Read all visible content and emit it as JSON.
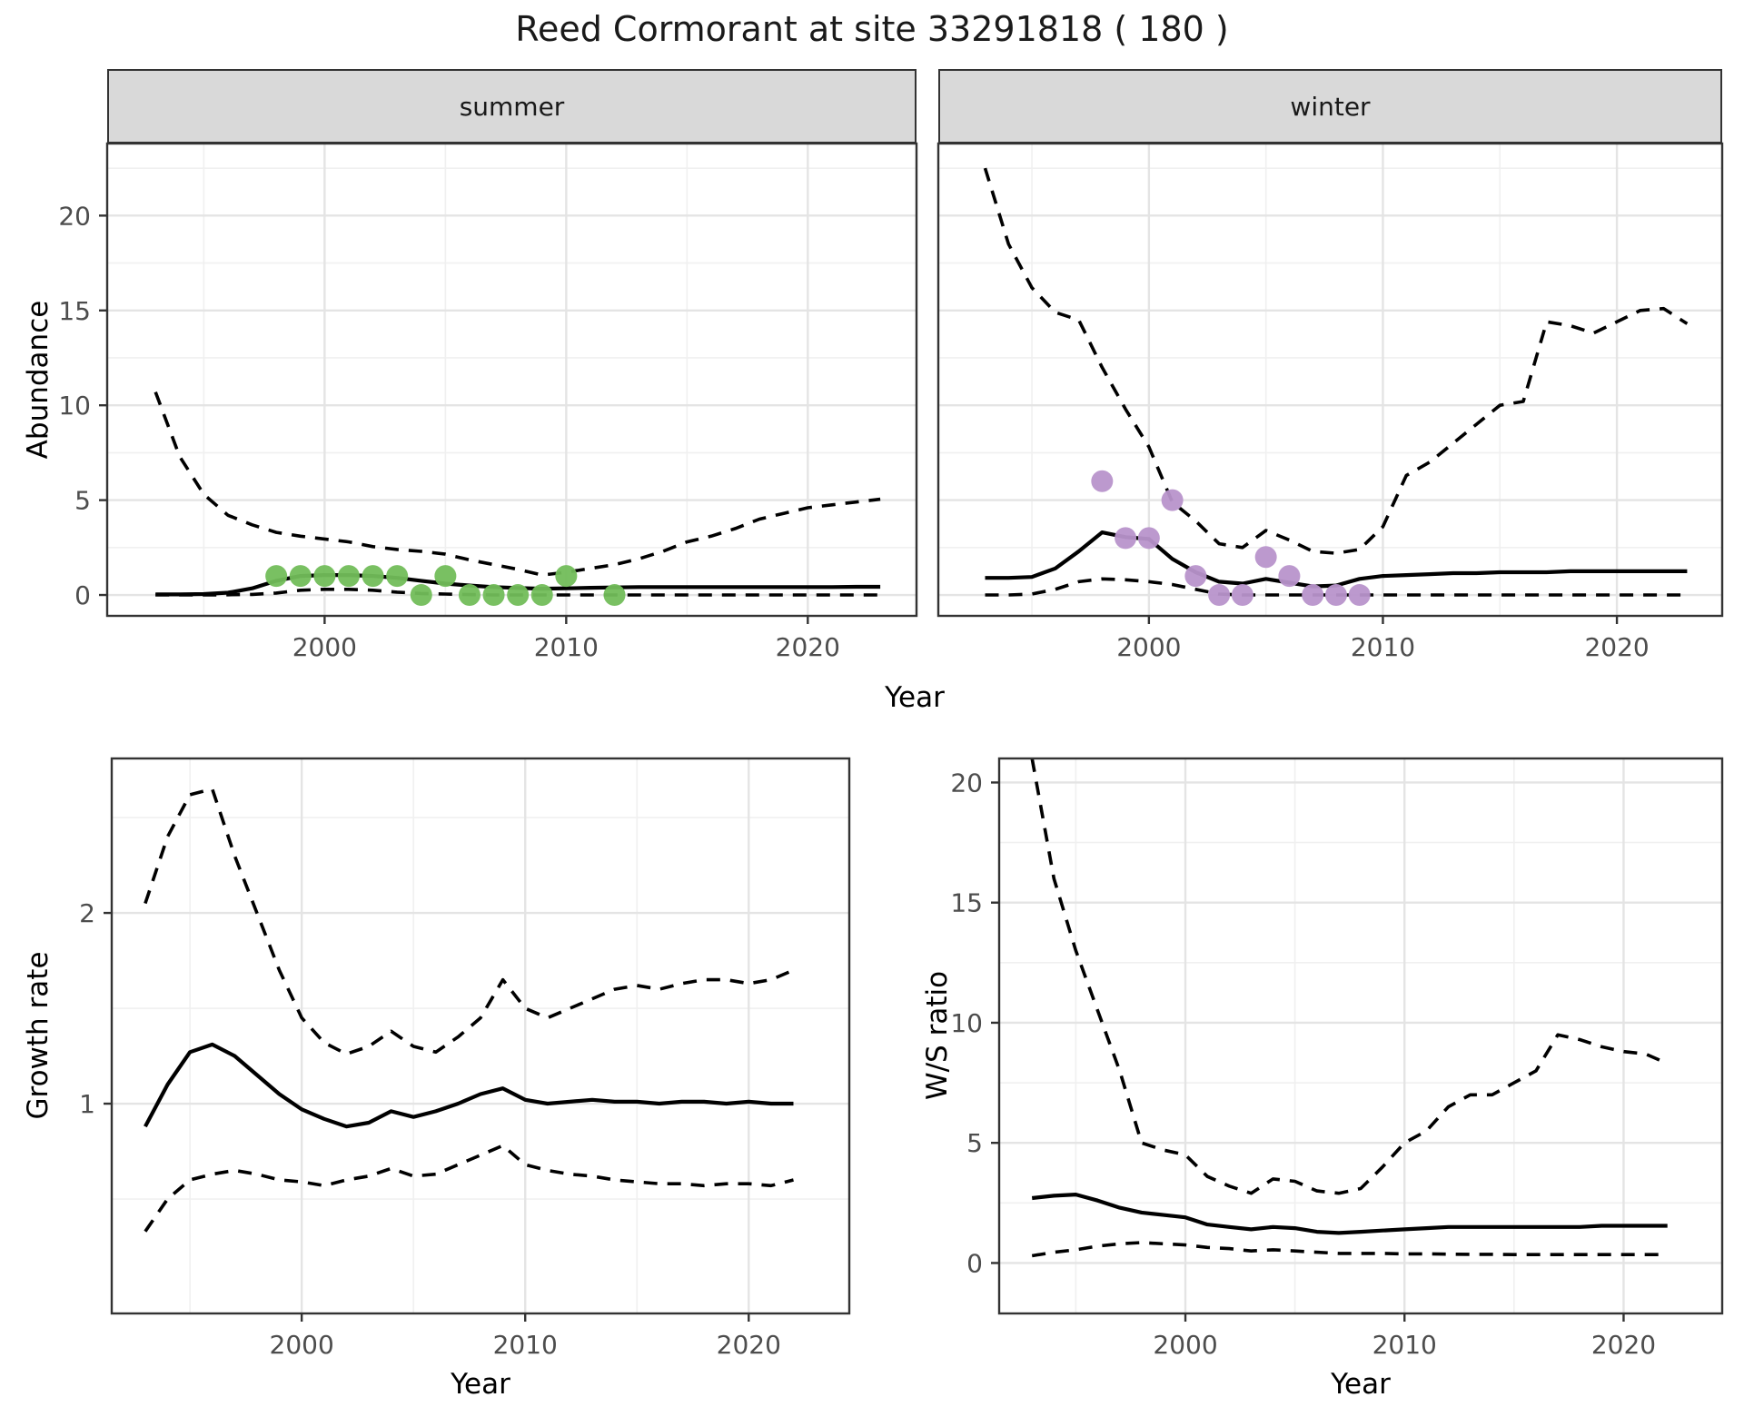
{
  "title": "Reed Cormorant at site 33291818 ( 180 )",
  "axes": {
    "x_title": "Year",
    "y_title_abundance": "Abundance",
    "y_title_growth": "Growth rate",
    "y_title_ws": "W/S ratio"
  },
  "facets": [
    {
      "label": "summer"
    },
    {
      "label": "winter"
    }
  ],
  "colors": {
    "summer_point": "#72bd5a",
    "winter_point": "#b893cb",
    "line": "#000000",
    "grid_major": "#e4e4e4",
    "grid_minor": "#f0f0f0",
    "panel_border": "#333333",
    "strip_bg": "#d9d9d9",
    "tick_label": "#4d4d4d"
  },
  "chart_data": [
    {
      "id": "abundance-summer",
      "type": "line",
      "facet": "summer",
      "xlabel": "Year",
      "ylabel": "Abundance",
      "xlim": [
        1991,
        2024.5
      ],
      "ylim": [
        -1.1,
        23.8
      ],
      "x_ticks": [
        2000,
        2010,
        2020
      ],
      "x_minor": [
        1995,
        2005,
        2015
      ],
      "y_ticks": [
        0,
        5,
        10,
        15,
        20
      ],
      "y_minor": [
        2.5,
        7.5,
        12.5,
        17.5,
        22.5
      ],
      "x": [
        1993,
        1994,
        1995,
        1996,
        1997,
        1998,
        1999,
        2000,
        2001,
        2002,
        2003,
        2004,
        2005,
        2006,
        2007,
        2008,
        2009,
        2010,
        2011,
        2012,
        2013,
        2014,
        2015,
        2016,
        2017,
        2018,
        2019,
        2020,
        2021,
        2022,
        2023
      ],
      "series": [
        {
          "name": "mean",
          "style": "solid",
          "values": [
            0.03,
            0.03,
            0.05,
            0.12,
            0.35,
            0.75,
            1.0,
            1.05,
            1.05,
            1.0,
            0.9,
            0.75,
            0.6,
            0.5,
            0.42,
            0.37,
            0.33,
            0.35,
            0.38,
            0.4,
            0.42,
            0.42,
            0.42,
            0.42,
            0.42,
            0.42,
            0.42,
            0.42,
            0.42,
            0.43,
            0.43
          ]
        },
        {
          "name": "upper95",
          "style": "dashed",
          "values": [
            10.7,
            7.3,
            5.3,
            4.2,
            3.7,
            3.3,
            3.1,
            2.95,
            2.8,
            2.55,
            2.4,
            2.3,
            2.15,
            1.85,
            1.6,
            1.35,
            1.05,
            1.2,
            1.4,
            1.6,
            1.9,
            2.3,
            2.8,
            3.1,
            3.5,
            4.0,
            4.3,
            4.6,
            4.75,
            4.9,
            5.05
          ]
        },
        {
          "name": "lower95",
          "style": "dashed",
          "values": [
            0,
            0,
            0,
            0.01,
            0.03,
            0.1,
            0.25,
            0.3,
            0.3,
            0.25,
            0.15,
            0.08,
            0.05,
            0.02,
            0,
            0,
            0,
            0,
            0,
            0,
            0,
            0,
            0,
            0,
            0,
            0,
            0,
            0,
            0,
            0,
            0
          ]
        }
      ],
      "observations": {
        "color_key": "summer_point",
        "points": [
          [
            1998,
            1
          ],
          [
            1999,
            1
          ],
          [
            2000,
            1
          ],
          [
            2001,
            1
          ],
          [
            2002,
            1
          ],
          [
            2003,
            1
          ],
          [
            2004,
            0
          ],
          [
            2005,
            1
          ],
          [
            2006,
            0
          ],
          [
            2007,
            0
          ],
          [
            2008,
            0
          ],
          [
            2009,
            0
          ],
          [
            2010,
            1
          ],
          [
            2012,
            0
          ]
        ]
      }
    },
    {
      "id": "abundance-winter",
      "type": "line",
      "facet": "winter",
      "xlabel": "Year",
      "ylabel": "Abundance",
      "xlim": [
        1991,
        2024.5
      ],
      "ylim": [
        -1.1,
        23.8
      ],
      "x_ticks": [
        2000,
        2010,
        2020
      ],
      "x_minor": [
        1995,
        2005,
        2015
      ],
      "y_ticks": [
        0,
        5,
        10,
        15,
        20
      ],
      "y_minor": [
        2.5,
        7.5,
        12.5,
        17.5,
        22.5
      ],
      "x": [
        1993,
        1994,
        1995,
        1996,
        1997,
        1998,
        1999,
        2000,
        2001,
        2002,
        2003,
        2004,
        2005,
        2006,
        2007,
        2008,
        2009,
        2010,
        2011,
        2012,
        2013,
        2014,
        2015,
        2016,
        2017,
        2018,
        2019,
        2020,
        2021,
        2022,
        2023
      ],
      "series": [
        {
          "name": "mean",
          "style": "solid",
          "values": [
            0.9,
            0.9,
            0.95,
            1.4,
            2.3,
            3.3,
            3.05,
            2.95,
            1.9,
            1.2,
            0.7,
            0.6,
            0.85,
            0.65,
            0.45,
            0.5,
            0.85,
            1.0,
            1.05,
            1.1,
            1.15,
            1.15,
            1.2,
            1.2,
            1.2,
            1.25,
            1.25,
            1.25,
            1.25,
            1.25,
            1.25
          ]
        },
        {
          "name": "upper95",
          "style": "dashed",
          "values": [
            22.5,
            18.5,
            16.2,
            14.9,
            14.5,
            12.0,
            9.8,
            7.8,
            4.9,
            3.9,
            2.7,
            2.5,
            3.4,
            2.9,
            2.3,
            2.2,
            2.4,
            3.6,
            6.3,
            7.0,
            8.0,
            9.0,
            10.0,
            10.2,
            14.4,
            14.2,
            13.8,
            14.4,
            15.0,
            15.1,
            14.3
          ]
        },
        {
          "name": "lower95",
          "style": "dashed",
          "values": [
            0,
            0,
            0.05,
            0.3,
            0.7,
            0.85,
            0.8,
            0.7,
            0.55,
            0.3,
            0.05,
            0,
            0,
            0,
            0,
            0,
            0,
            0,
            0,
            0,
            0,
            0,
            0,
            0,
            0,
            0,
            0,
            0,
            0,
            0,
            0
          ]
        }
      ],
      "observations": {
        "color_key": "winter_point",
        "points": [
          [
            1998,
            6
          ],
          [
            1999,
            3
          ],
          [
            2000,
            3
          ],
          [
            2001,
            5
          ],
          [
            2002,
            1
          ],
          [
            2003,
            0
          ],
          [
            2004,
            0
          ],
          [
            2005,
            2
          ],
          [
            2006,
            1
          ],
          [
            2007,
            0
          ],
          [
            2008,
            0
          ],
          [
            2009,
            0
          ]
        ]
      }
    },
    {
      "id": "growth-rate",
      "type": "line",
      "facet": "",
      "xlabel": "Year",
      "ylabel": "Growth rate",
      "xlim": [
        1991.5,
        2024.5
      ],
      "ylim": [
        -0.1,
        2.81
      ],
      "x_ticks": [
        2000,
        2010,
        2020
      ],
      "x_minor": [
        1995,
        2005,
        2015
      ],
      "y_ticks": [
        1,
        2
      ],
      "y_minor": [
        0.5,
        1.5,
        2.5
      ],
      "x": [
        1993,
        1994,
        1995,
        1996,
        1997,
        1998,
        1999,
        2000,
        2001,
        2002,
        2003,
        2004,
        2005,
        2006,
        2007,
        2008,
        2009,
        2010,
        2011,
        2012,
        2013,
        2014,
        2015,
        2016,
        2017,
        2018,
        2019,
        2020,
        2021,
        2022
      ],
      "series": [
        {
          "name": "mean",
          "style": "solid",
          "values": [
            0.88,
            1.1,
            1.27,
            1.31,
            1.25,
            1.15,
            1.05,
            0.97,
            0.92,
            0.88,
            0.9,
            0.96,
            0.93,
            0.96,
            1.0,
            1.05,
            1.08,
            1.02,
            1.0,
            1.01,
            1.02,
            1.01,
            1.01,
            1.0,
            1.01,
            1.01,
            1.0,
            1.01,
            1.0,
            1.0
          ]
        },
        {
          "name": "upper95",
          "style": "dashed",
          "values": [
            2.05,
            2.4,
            2.62,
            2.65,
            2.3,
            2.0,
            1.7,
            1.45,
            1.32,
            1.26,
            1.3,
            1.38,
            1.3,
            1.27,
            1.35,
            1.45,
            1.65,
            1.5,
            1.45,
            1.5,
            1.55,
            1.6,
            1.62,
            1.6,
            1.63,
            1.65,
            1.65,
            1.63,
            1.65,
            1.7
          ]
        },
        {
          "name": "lower95",
          "style": "dashed",
          "values": [
            0.33,
            0.5,
            0.6,
            0.63,
            0.65,
            0.63,
            0.6,
            0.59,
            0.57,
            0.6,
            0.62,
            0.66,
            0.62,
            0.63,
            0.68,
            0.73,
            0.78,
            0.68,
            0.65,
            0.63,
            0.62,
            0.6,
            0.59,
            0.58,
            0.58,
            0.57,
            0.58,
            0.58,
            0.57,
            0.6
          ]
        }
      ],
      "observations": {
        "color_key": "",
        "points": []
      }
    },
    {
      "id": "ws-ratio",
      "type": "line",
      "facet": "",
      "xlabel": "Year",
      "ylabel": "W/S ratio",
      "xlim": [
        1991.5,
        2024.5
      ],
      "ylim": [
        -2.1,
        21.0
      ],
      "x_ticks": [
        2000,
        2010,
        2020
      ],
      "x_minor": [
        1995,
        2005,
        2015
      ],
      "y_ticks": [
        0,
        5,
        10,
        15,
        20
      ],
      "y_minor": [
        2.5,
        7.5,
        12.5,
        17.5
      ],
      "x": [
        1993,
        1994,
        1995,
        1996,
        1997,
        1998,
        1999,
        2000,
        2001,
        2002,
        2003,
        2004,
        2005,
        2006,
        2007,
        2008,
        2009,
        2010,
        2011,
        2012,
        2013,
        2014,
        2015,
        2016,
        2017,
        2018,
        2019,
        2020,
        2021,
        2022
      ],
      "series": [
        {
          "name": "mean",
          "style": "solid",
          "values": [
            2.7,
            2.8,
            2.85,
            2.6,
            2.3,
            2.1,
            2.0,
            1.9,
            1.6,
            1.5,
            1.4,
            1.5,
            1.45,
            1.3,
            1.25,
            1.3,
            1.35,
            1.4,
            1.45,
            1.5,
            1.5,
            1.5,
            1.5,
            1.5,
            1.5,
            1.5,
            1.55,
            1.55,
            1.55,
            1.55
          ]
        },
        {
          "name": "upper95",
          "style": "dashed",
          "values": [
            21.0,
            16.0,
            13.0,
            10.5,
            8.0,
            5.0,
            4.7,
            4.5,
            3.6,
            3.2,
            2.9,
            3.5,
            3.4,
            3.0,
            2.9,
            3.1,
            4.0,
            5.0,
            5.5,
            6.5,
            7.0,
            7.0,
            7.5,
            8.0,
            9.5,
            9.3,
            9.0,
            8.8,
            8.7,
            8.3
          ]
        },
        {
          "name": "lower95",
          "style": "dashed",
          "values": [
            0.3,
            0.45,
            0.55,
            0.7,
            0.8,
            0.85,
            0.8,
            0.75,
            0.65,
            0.6,
            0.5,
            0.55,
            0.5,
            0.45,
            0.4,
            0.4,
            0.4,
            0.38,
            0.38,
            0.37,
            0.36,
            0.36,
            0.35,
            0.35,
            0.35,
            0.35,
            0.35,
            0.35,
            0.35,
            0.35
          ]
        }
      ],
      "observations": {
        "color_key": "",
        "points": []
      }
    }
  ]
}
